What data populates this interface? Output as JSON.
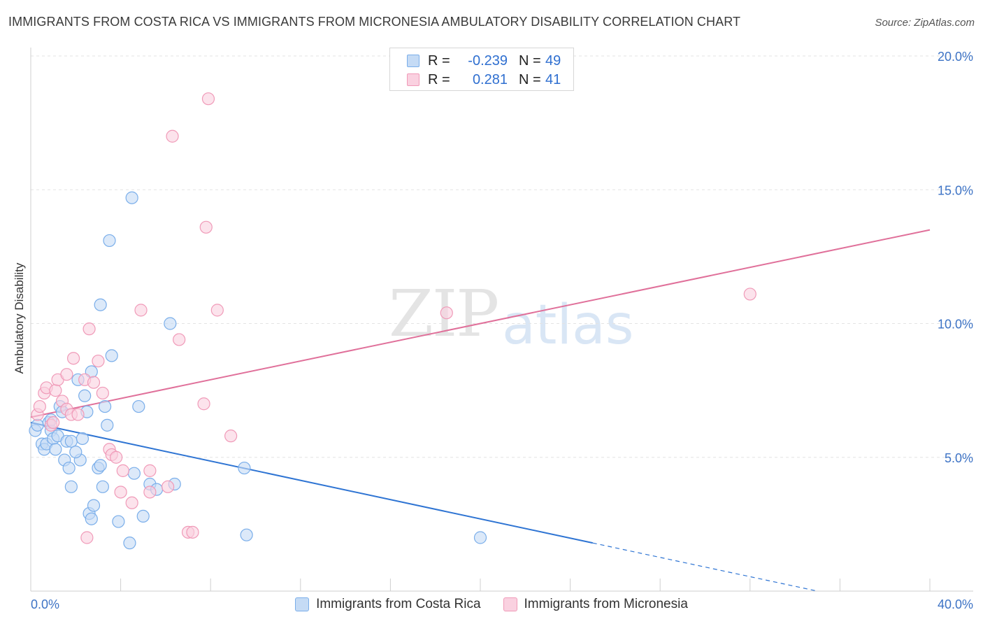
{
  "title": "IMMIGRANTS FROM COSTA RICA VS IMMIGRANTS FROM MICRONESIA AMBULATORY DISABILITY CORRELATION CHART",
  "source": "Source: ZipAtlas.com",
  "watermark": {
    "zip": "ZIP",
    "atlas": "atlas"
  },
  "legend_top": {
    "rows": [
      {
        "r_label": "R =",
        "r_value": "-0.239",
        "n_label": "N =",
        "n_value": "49"
      },
      {
        "r_label": "R =",
        "r_value": "0.281",
        "n_label": "N =",
        "n_value": "41"
      }
    ]
  },
  "chart_data": {
    "type": "scatter",
    "title": "IMMIGRANTS FROM COSTA RICA VS IMMIGRANTS FROM MICRONESIA AMBULATORY DISABILITY CORRELATION CHART",
    "xlabel": "",
    "ylabel": "Ambulatory Disability",
    "xlim": [
      0,
      40
    ],
    "ylim": [
      0,
      20
    ],
    "x_tick_labels": [
      "0.0%",
      "40.0%"
    ],
    "y_ticks": [
      5,
      10,
      15,
      20
    ],
    "y_tick_labels": [
      "5.0%",
      "10.0%",
      "15.0%",
      "20.0%"
    ],
    "grid": true,
    "legend_position": "bottom",
    "series": [
      {
        "name": "Immigrants from Costa Rica",
        "color": "#7aaeea",
        "fill": "#c5dbf5",
        "line_color": "#2e74d3",
        "r": -0.239,
        "n": 49,
        "trend": {
          "x0": 0,
          "y0": 6.3,
          "x1": 25,
          "y1": 1.8,
          "dash_to_x": 40
        },
        "points": [
          [
            0.2,
            6.0
          ],
          [
            0.3,
            6.2
          ],
          [
            0.5,
            5.5
          ],
          [
            0.6,
            5.3
          ],
          [
            0.7,
            5.5
          ],
          [
            0.8,
            6.3
          ],
          [
            0.9,
            6.0
          ],
          [
            1.0,
            5.7
          ],
          [
            1.1,
            5.3
          ],
          [
            1.2,
            5.8
          ],
          [
            1.3,
            6.9
          ],
          [
            1.4,
            6.7
          ],
          [
            1.5,
            4.9
          ],
          [
            1.6,
            5.6
          ],
          [
            1.8,
            5.6
          ],
          [
            1.7,
            4.6
          ],
          [
            1.8,
            3.9
          ],
          [
            2.1,
            7.9
          ],
          [
            2.2,
            4.9
          ],
          [
            2.3,
            5.7
          ],
          [
            2.4,
            7.3
          ],
          [
            2.5,
            6.7
          ],
          [
            2.6,
            2.9
          ],
          [
            2.7,
            2.7
          ],
          [
            2.8,
            3.2
          ],
          [
            2.7,
            8.2
          ],
          [
            3.0,
            4.6
          ],
          [
            3.1,
            4.7
          ],
          [
            3.2,
            3.9
          ],
          [
            3.1,
            10.7
          ],
          [
            3.3,
            6.9
          ],
          [
            3.4,
            6.2
          ],
          [
            3.5,
            13.1
          ],
          [
            3.6,
            8.8
          ],
          [
            3.9,
            2.6
          ],
          [
            4.4,
            1.8
          ],
          [
            4.5,
            14.7
          ],
          [
            4.6,
            4.4
          ],
          [
            4.8,
            6.9
          ],
          [
            5.0,
            2.8
          ],
          [
            5.3,
            4.0
          ],
          [
            5.6,
            3.8
          ],
          [
            6.2,
            10.0
          ],
          [
            6.4,
            4.0
          ],
          [
            9.5,
            4.6
          ],
          [
            9.6,
            2.1
          ],
          [
            20.0,
            2.0
          ],
          [
            0.9,
            6.4
          ],
          [
            2.0,
            5.2
          ]
        ]
      },
      {
        "name": "Immigrants from Micronesia",
        "color": "#f09ab8",
        "fill": "#fad1e0",
        "line_color": "#e0709a",
        "r": 0.281,
        "n": 41,
        "trend": {
          "x0": 0,
          "y0": 6.5,
          "x1": 40,
          "y1": 13.5
        },
        "points": [
          [
            0.3,
            6.6
          ],
          [
            0.4,
            6.9
          ],
          [
            0.6,
            7.4
          ],
          [
            0.7,
            7.6
          ],
          [
            0.9,
            6.2
          ],
          [
            1.1,
            7.5
          ],
          [
            1.2,
            7.9
          ],
          [
            1.4,
            7.1
          ],
          [
            1.6,
            8.1
          ],
          [
            1.6,
            6.8
          ],
          [
            1.8,
            6.6
          ],
          [
            1.9,
            8.7
          ],
          [
            2.1,
            6.6
          ],
          [
            2.4,
            7.9
          ],
          [
            2.5,
            2.0
          ],
          [
            2.6,
            9.8
          ],
          [
            2.8,
            7.8
          ],
          [
            3.0,
            8.6
          ],
          [
            3.2,
            7.4
          ],
          [
            3.5,
            5.3
          ],
          [
            3.6,
            5.1
          ],
          [
            3.8,
            5.0
          ],
          [
            4.0,
            3.7
          ],
          [
            4.1,
            4.5
          ],
          [
            4.5,
            3.3
          ],
          [
            4.9,
            10.5
          ],
          [
            5.3,
            4.5
          ],
          [
            5.3,
            3.7
          ],
          [
            6.1,
            3.9
          ],
          [
            6.3,
            17.0
          ],
          [
            6.6,
            9.4
          ],
          [
            7.0,
            2.2
          ],
          [
            7.2,
            2.2
          ],
          [
            7.7,
            7.0
          ],
          [
            7.8,
            13.6
          ],
          [
            7.9,
            18.4
          ],
          [
            8.3,
            10.5
          ],
          [
            8.9,
            5.8
          ],
          [
            18.5,
            10.4
          ],
          [
            32.0,
            11.1
          ],
          [
            1.0,
            6.3
          ]
        ]
      }
    ]
  }
}
